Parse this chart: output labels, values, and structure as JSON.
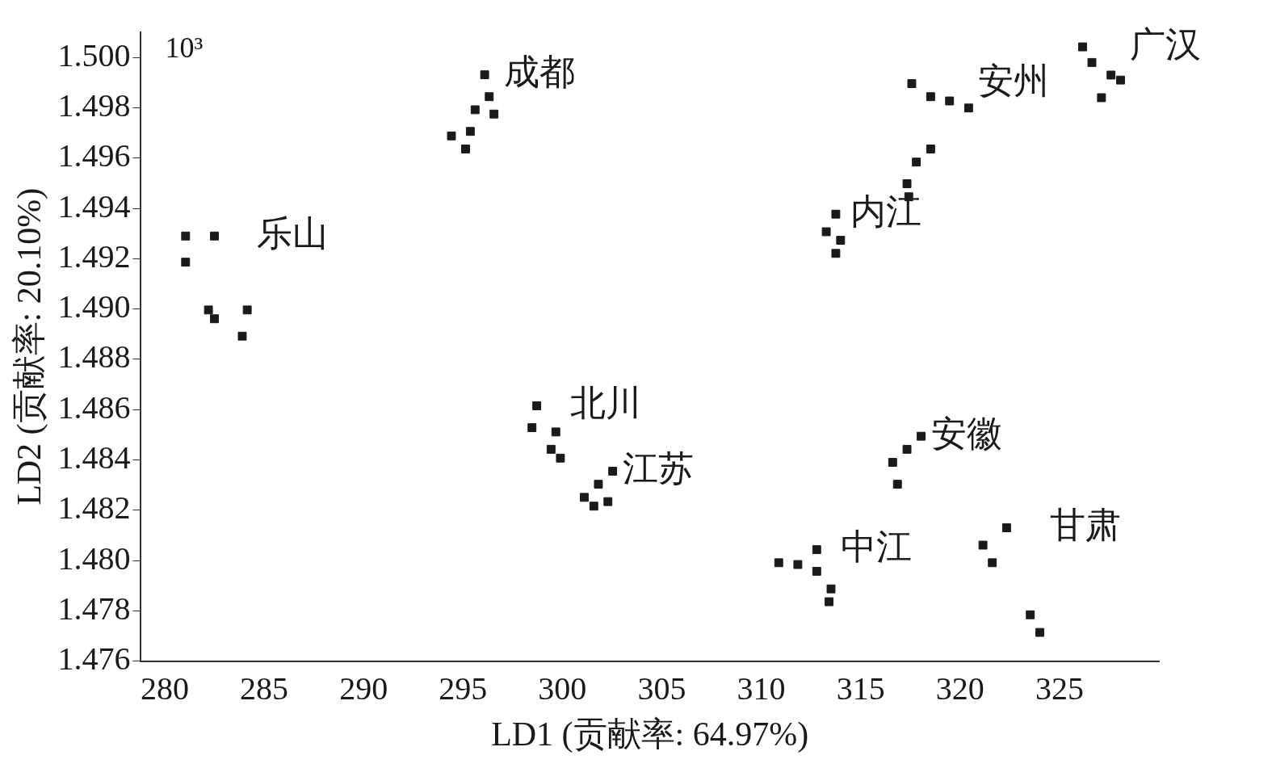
{
  "chart_data": {
    "type": "scatter",
    "xlabel": "LD1 (贡献率: 64.97%)",
    "ylabel": "LD2 (贡献率: 20.10%)",
    "annotations": [
      "10³"
    ],
    "xlim": [
      278.8,
      330
    ],
    "xticks": [
      280,
      285,
      290,
      295,
      300,
      305,
      310,
      315,
      320,
      325
    ],
    "ylim": [
      1.476,
      1.501
    ],
    "yticks": [
      {
        "value": 1.476,
        "label": "1.476"
      },
      {
        "value": 1.478,
        "label": "1.478"
      },
      {
        "value": 1.48,
        "label": "1.480"
      },
      {
        "value": 1.482,
        "label": "1.482"
      },
      {
        "value": 1.484,
        "label": "1.484"
      },
      {
        "value": 1.486,
        "label": "1.486"
      },
      {
        "value": 1.488,
        "label": "1.488"
      },
      {
        "value": 1.49,
        "label": "1.490"
      },
      {
        "value": 1.492,
        "label": "1.492"
      },
      {
        "value": 1.494,
        "label": "1.494"
      },
      {
        "value": 1.496,
        "label": "1.496"
      },
      {
        "value": 1.498,
        "label": "1.498"
      },
      {
        "value": 1.5,
        "label": "1.500"
      }
    ],
    "grid": false,
    "legend": false,
    "marker": "square",
    "series": [
      {
        "name": "乐山",
        "color": "#1a1a1a",
        "x": [
          281.05,
          282.5,
          281.05,
          282.2,
          282.5,
          284.15,
          283.9
        ],
        "values": [
          1.4929,
          1.4929,
          1.49186,
          1.48996,
          1.48961,
          1.48996,
          1.48892
        ]
      },
      {
        "name": "成都",
        "color": "#1a1a1a",
        "x": [
          296.09,
          296.32,
          295.61,
          296.56,
          295.37,
          294.42,
          295.13
        ],
        "values": [
          1.49931,
          1.49844,
          1.49792,
          1.49775,
          1.49706,
          1.49688,
          1.49636
        ]
      },
      {
        "name": "北川",
        "color": "#1a1a1a",
        "x": [
          298.71,
          298.47,
          299.67,
          299.43,
          299.9
        ],
        "values": [
          1.48615,
          1.48528,
          1.48511,
          1.48442,
          1.48407
        ]
      },
      {
        "name": "江苏",
        "color": "#1a1a1a",
        "x": [
          302.53,
          301.81,
          301.1,
          302.29,
          301.58
        ],
        "values": [
          1.48355,
          1.48303,
          1.48251,
          1.48234,
          1.48216
        ]
      },
      {
        "name": "中江",
        "color": "#1a1a1a",
        "x": [
          310.88,
          311.84,
          312.79,
          312.79,
          313.51,
          313.41
        ],
        "values": [
          1.47991,
          1.47984,
          1.48043,
          1.47957,
          1.47887,
          1.47836
        ]
      },
      {
        "name": "安徽",
        "color": "#1a1a1a",
        "x": [
          318.04,
          317.33,
          316.61,
          316.85
        ],
        "values": [
          1.48494,
          1.48442,
          1.4839,
          1.48303
        ]
      },
      {
        "name": "甘肃",
        "color": "#1a1a1a",
        "x": [
          321.15,
          322.34,
          321.62,
          323.53,
          324.01
        ],
        "values": [
          1.48061,
          1.4813,
          1.47991,
          1.47784,
          1.47714
        ]
      },
      {
        "name": "内江",
        "color": "#1a1a1a",
        "x": [
          313.75,
          313.27,
          313.99,
          313.75
        ],
        "values": [
          1.49377,
          1.49307,
          1.49273,
          1.49221
        ]
      },
      {
        "name": "安州",
        "color": "#1a1a1a",
        "x": [
          317.57,
          318.52,
          319.47,
          320.43,
          318.52,
          317.8,
          317.33,
          317.42
        ],
        "values": [
          1.49896,
          1.49844,
          1.49827,
          1.49799,
          1.49636,
          1.49584,
          1.49498,
          1.49446
        ]
      },
      {
        "name": "广汉",
        "color": "#1a1a1a",
        "x": [
          326.16,
          326.63,
          327.59,
          328.07,
          327.11
        ],
        "values": [
          1.50042,
          1.4998,
          1.4993,
          1.4991,
          1.4984
        ]
      }
    ]
  }
}
